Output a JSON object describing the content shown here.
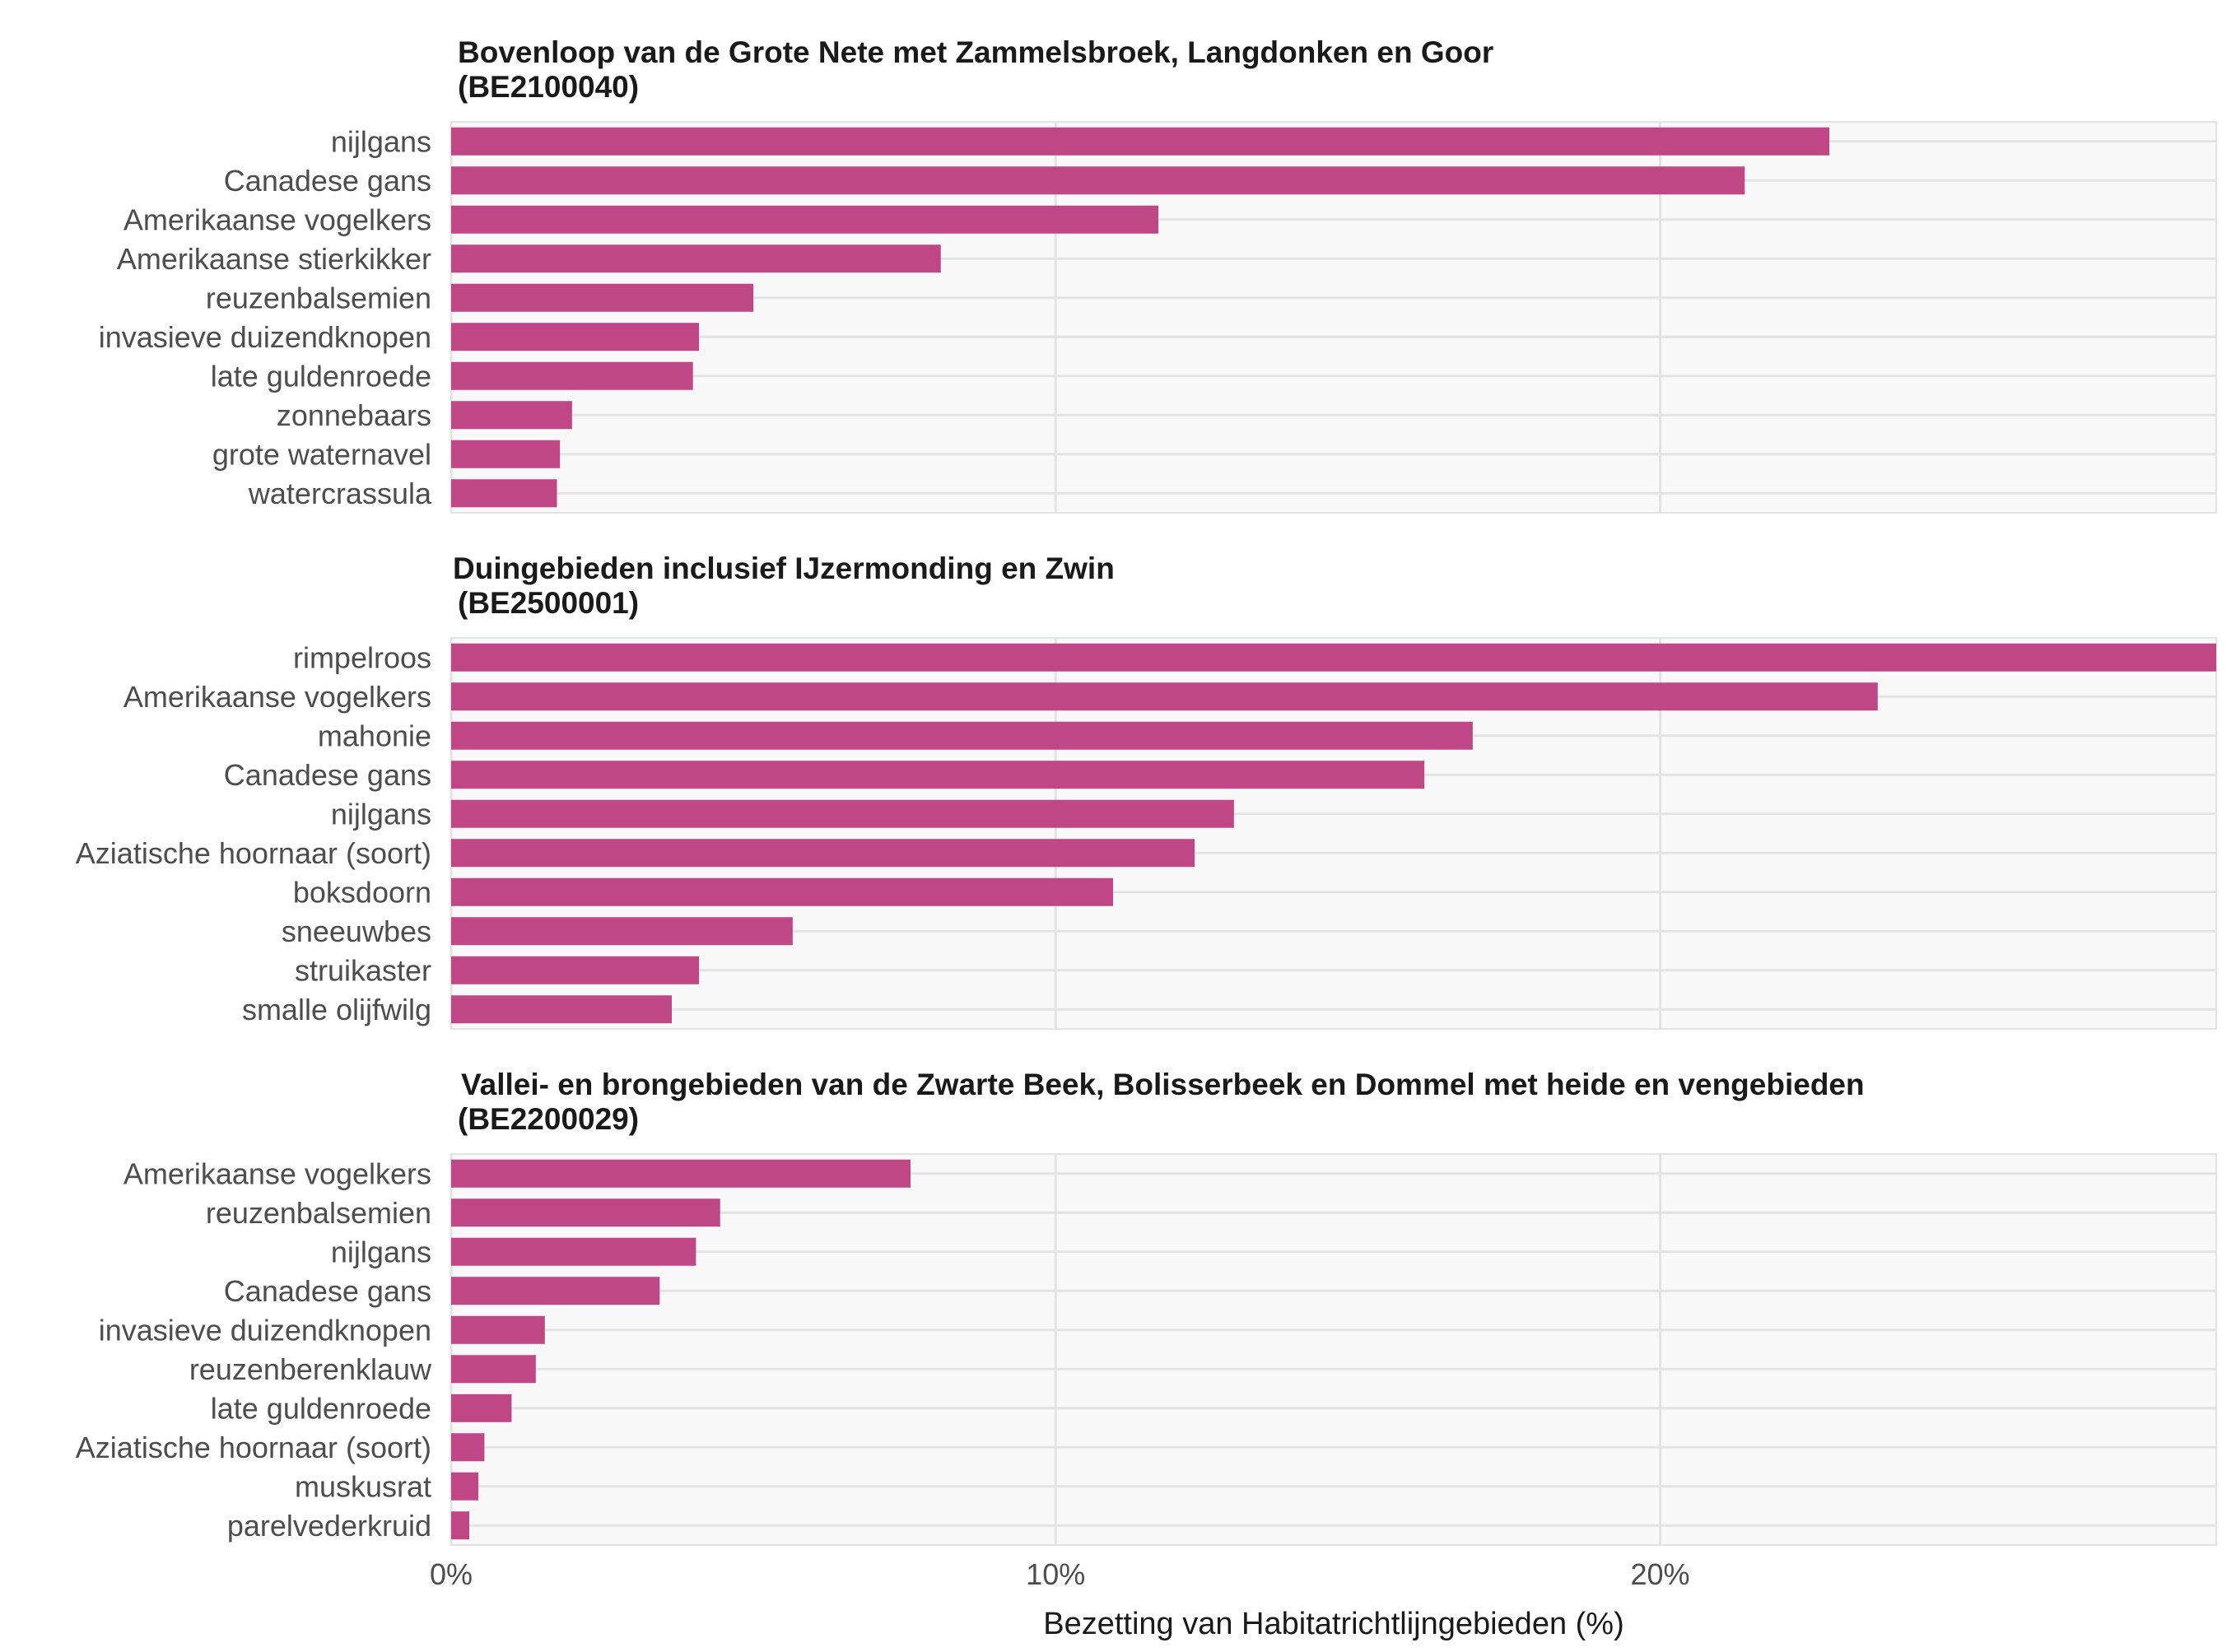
{
  "chart_data": {
    "type": "bar",
    "orientation": "horizontal",
    "xlabel": "Bezetting van Habitatrichtlijngebieden (%)",
    "xlim": [
      0,
      29.2
    ],
    "x_ticks": [
      0,
      10,
      20
    ],
    "x_tick_labels": [
      "0%",
      "10%",
      "20%"
    ],
    "grid": true,
    "bar_color": "#c04785",
    "panel_background": "#f8f8f8",
    "grid_color": "#e3e3e3",
    "panels": [
      {
        "title_line1": "Bovenloop van de Grote Nete met Zammelsbroek, Langdonken en Goor",
        "title_line2": "(BE2100040)",
        "categories": [
          "nijlgans",
          "Canadese gans",
          "Amerikaanse vogelkers",
          "Amerikaanse stierkikker",
          "reuzenbalsemien",
          "invasieve duizendknopen",
          "late guldenroede",
          "zonnebaars",
          "grote waternavel",
          "watercrassula"
        ],
        "values": [
          22.8,
          21.4,
          11.7,
          8.1,
          5.0,
          4.1,
          4.0,
          2.0,
          1.8,
          1.75
        ]
      },
      {
        "title_line1": "Duingebieden inclusief IJzermonding en Zwin",
        "title_line2": "(BE2500001)",
        "categories": [
          "rimpelroos",
          "Amerikaanse vogelkers",
          "mahonie",
          "Canadese gans",
          "nijlgans",
          "Aziatische hoornaar (soort)",
          "boksdoorn",
          "sneeuwbes",
          "struikaster",
          "smalle olijfwilg"
        ],
        "values": [
          29.2,
          23.6,
          16.9,
          16.1,
          12.95,
          12.3,
          10.95,
          5.65,
          4.1,
          3.65
        ]
      },
      {
        "title_line1": "Vallei- en brongebieden van de Zwarte Beek, Bolisserbeek en Dommel met heide en vengebieden",
        "title_line2": "(BE2200029)",
        "categories": [
          "Amerikaanse vogelkers",
          "reuzenbalsemien",
          "nijlgans",
          "Canadese gans",
          "invasieve duizendknopen",
          "reuzenberenklauw",
          "late guldenroede",
          "Aziatische hoornaar (soort)",
          "muskusrat",
          "parelvederkruid"
        ],
        "values": [
          7.6,
          4.45,
          4.05,
          3.45,
          1.55,
          1.4,
          1.0,
          0.55,
          0.45,
          0.3
        ]
      }
    ]
  }
}
